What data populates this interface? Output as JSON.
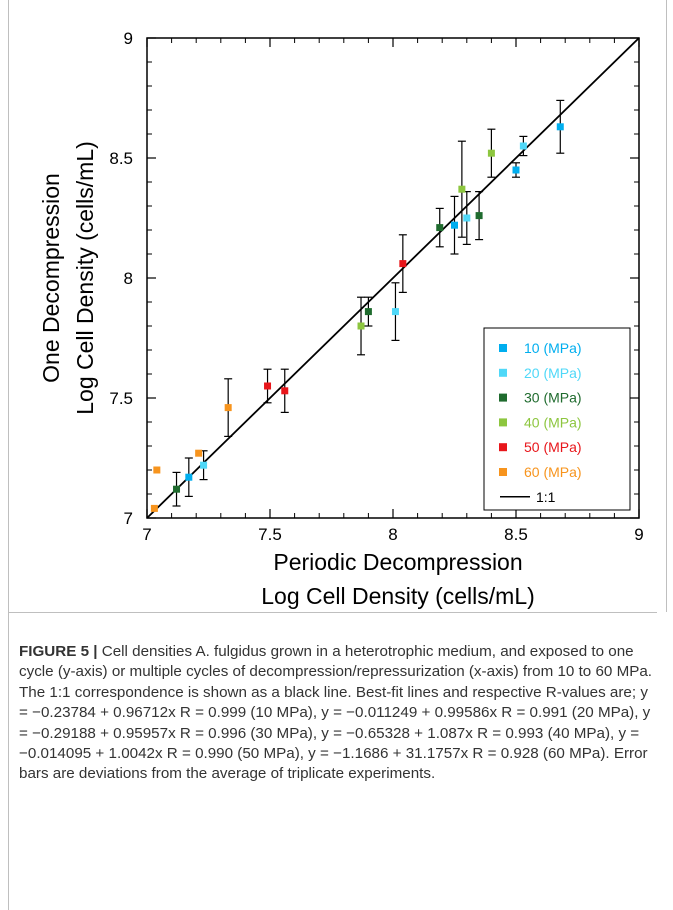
{
  "chart_data": {
    "type": "scatter",
    "xlabel": [
      "Periodic Decompression",
      "Log Cell Density (cells/mL)"
    ],
    "ylabel": [
      "One Decompression",
      "Log Cell Density (cells/mL)"
    ],
    "xlim": [
      7,
      9
    ],
    "ylim": [
      7,
      9
    ],
    "x_ticks": [
      "7",
      "7.5",
      "8",
      "8.5",
      "9"
    ],
    "y_ticks": [
      "7",
      "7.5",
      "8",
      "8.5",
      "9"
    ],
    "grid": false,
    "legend_position": "bottom-right",
    "series": [
      {
        "name": "10 (MPa)",
        "color": "#00aeef",
        "points": [
          {
            "x": 7.17,
            "y": 7.17,
            "err": 0.08
          },
          {
            "x": 8.25,
            "y": 8.22,
            "err": 0.12
          },
          {
            "x": 8.5,
            "y": 8.45,
            "err": 0.03
          },
          {
            "x": 8.68,
            "y": 8.63,
            "err": 0.11
          }
        ]
      },
      {
        "name": "20 (MPa)",
        "color": "#4fd8f8",
        "points": [
          {
            "x": 7.23,
            "y": 7.22,
            "err": 0.06
          },
          {
            "x": 8.01,
            "y": 7.86,
            "err": 0.12
          },
          {
            "x": 8.3,
            "y": 8.25,
            "err": 0.11
          },
          {
            "x": 8.53,
            "y": 8.55,
            "err": 0.04
          }
        ]
      },
      {
        "name": "30 (MPa)",
        "color": "#1f6b2e",
        "points": [
          {
            "x": 7.12,
            "y": 7.12,
            "err": 0.07
          },
          {
            "x": 7.9,
            "y": 7.86,
            "err": 0.06
          },
          {
            "x": 8.19,
            "y": 8.21,
            "err": 0.08
          },
          {
            "x": 8.35,
            "y": 8.26,
            "err": 0.1
          }
        ]
      },
      {
        "name": "40 (MPa)",
        "color": "#8dc63f",
        "points": [
          {
            "x": 7.87,
            "y": 7.8,
            "err": 0.12
          },
          {
            "x": 8.28,
            "y": 8.37,
            "err": 0.2
          },
          {
            "x": 8.4,
            "y": 8.52,
            "err": 0.1
          }
        ]
      },
      {
        "name": "50 (MPa)",
        "color": "#e8161b",
        "points": [
          {
            "x": 7.49,
            "y": 7.55,
            "err": 0.07
          },
          {
            "x": 7.56,
            "y": 7.53,
            "err": 0.09
          },
          {
            "x": 8.04,
            "y": 8.06,
            "err": 0.12
          }
        ]
      },
      {
        "name": "60 (MPa)",
        "color": "#f7941d",
        "points": [
          {
            "x": 7.03,
            "y": 7.04,
            "err": 0.0
          },
          {
            "x": 7.04,
            "y": 7.2,
            "err": 0.0
          },
          {
            "x": 7.21,
            "y": 7.27,
            "err": 0.0
          },
          {
            "x": 7.33,
            "y": 7.46,
            "err": 0.12
          }
        ]
      }
    ],
    "reference_line": {
      "name": "1:1",
      "color": "#000000",
      "from": [
        7,
        7
      ],
      "to": [
        9,
        9
      ]
    }
  },
  "caption": {
    "label": "FIGURE 5 |",
    "text": " Cell densities A. fulgidus grown in a heterotrophic medium, and exposed to one cycle (y-axis) or multiple cycles of decompression/repressurization (x-axis) from 10 to 60 MPa. The 1:1 correspondence is shown as a black line. Best-fit lines and respective R-values are; y = −0.23784 + 0.96712x R = 0.999 (10 MPa), y = −0.011249 + 0.99586x R = 0.991 (20 MPa), y = −0.29188 + 0.95957x R = 0.996 (30 MPa), y = −0.65328 + 1.087x R = 0.993 (40 MPa), y = −0.014095 + 1.0042x R = 0.990 (50 MPa), y = −1.1686 + 31.1757x R = 0.928 (60 MPa). Error bars are deviations from the average of triplicate experiments."
  }
}
